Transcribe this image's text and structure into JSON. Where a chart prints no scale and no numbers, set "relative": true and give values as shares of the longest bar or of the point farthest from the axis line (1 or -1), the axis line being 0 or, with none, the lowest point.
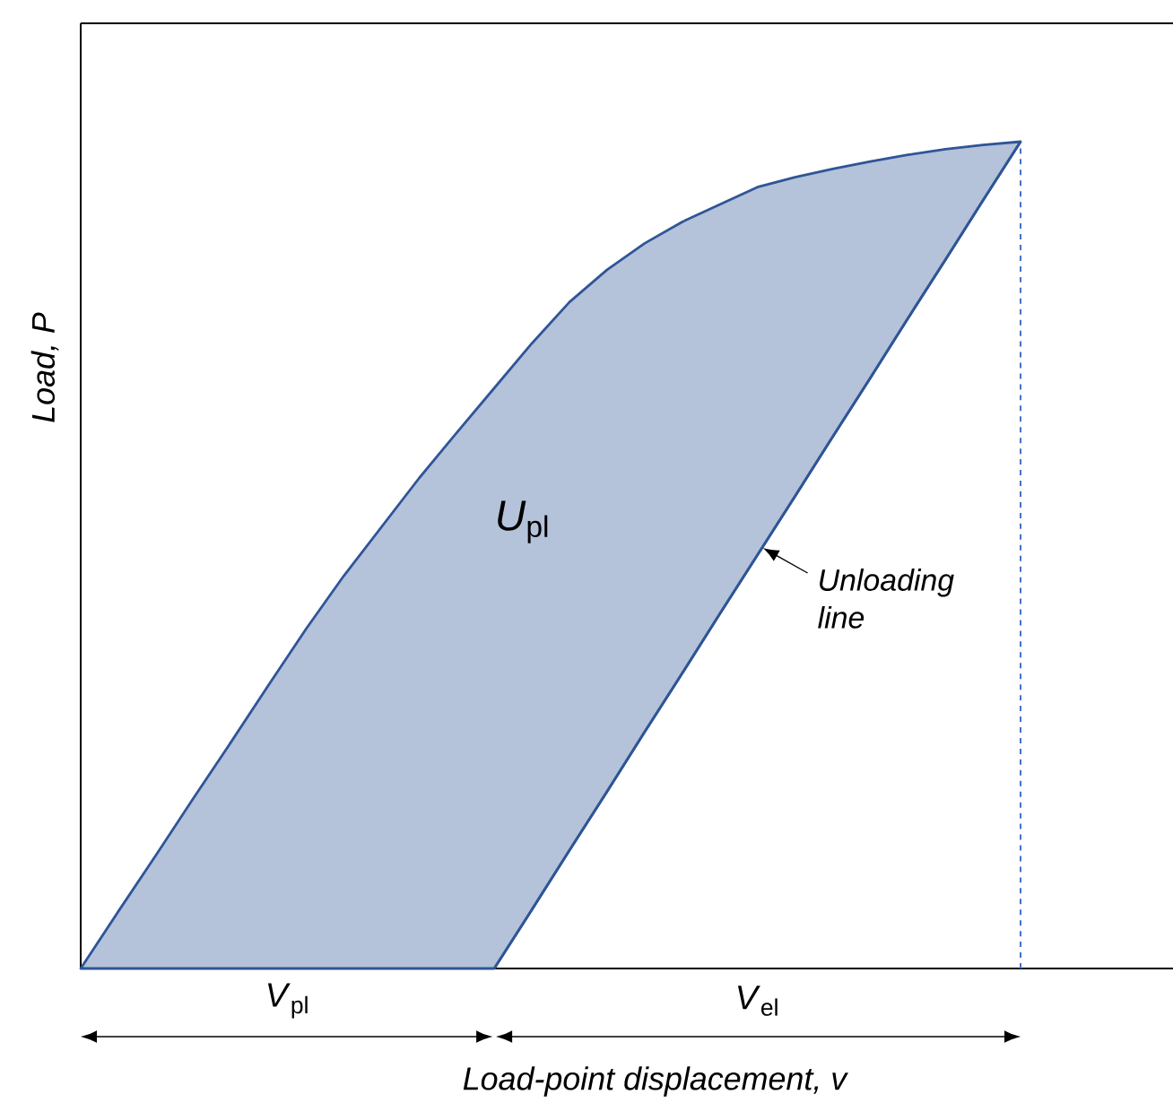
{
  "chart_data": {
    "type": "area",
    "relative": true,
    "xlabel": "Load-point displacement, v",
    "ylabel": "Load, P",
    "categories": [
      null,
      null,
      null,
      null,
      null,
      null,
      null,
      null,
      null,
      null,
      null,
      null,
      null,
      null,
      null,
      null,
      null,
      null,
      null,
      null,
      null,
      null,
      null,
      null,
      null,
      null
    ],
    "series": [
      {
        "color": "#2f5597",
        "values": [
          0,
          0.069,
          0.137,
          0.206,
          0.274,
          0.343,
          0.411,
          0.475,
          0.534,
          0.593,
          0.648,
          0.702,
          0.756,
          0.806,
          0.845,
          0.877,
          0.903,
          0.924,
          0.945,
          0.957,
          0.967,
          0.976,
          0.984,
          0.991,
          0.996,
          1
        ]
      },
      {
        "type": "line",
        "color": "#2f5597",
        "values": [
          null,
          null,
          null,
          null,
          null,
          null,
          null,
          null,
          null,
          null,
          null,
          0,
          0.071,
          0.143,
          0.214,
          0.286,
          0.357,
          0.429,
          0.5,
          0.571,
          0.643,
          0.714,
          0.786,
          0.857,
          0.929,
          1
        ]
      }
    ],
    "ref_lines": [
      {
        "axis": "x",
        "line_style": "dashed",
        "color": "#4472c4"
      }
    ],
    "annotations": [
      "*U*$_{pl}$",
      "Unloading line",
      "*V*$_{pl}$",
      "*V*$_{el}$"
    ]
  }
}
